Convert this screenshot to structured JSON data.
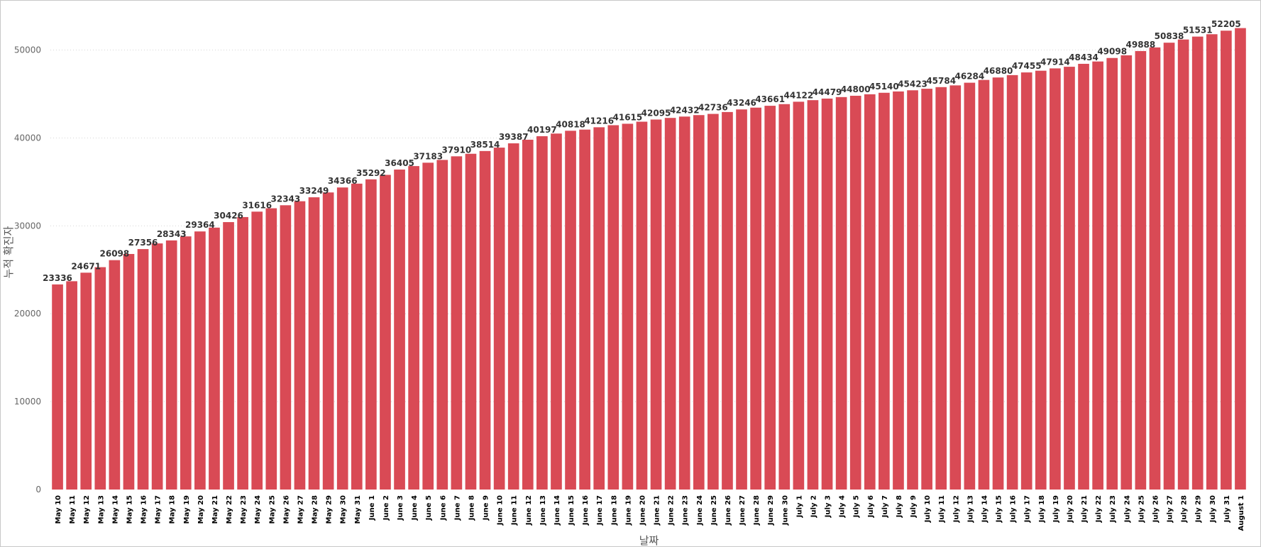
{
  "chart_data": {
    "type": "bar",
    "xlabel": "날짜",
    "ylabel": "누적 확진자",
    "ylim": [
      0,
      54000
    ],
    "yticks": [
      0,
      10000,
      20000,
      30000,
      40000,
      50000
    ],
    "grid": true,
    "bar_color": "#d94a55",
    "categories": [
      "May 10",
      "May 11",
      "May 12",
      "May 13",
      "May 14",
      "May 15",
      "May 16",
      "May 17",
      "May 18",
      "May 19",
      "May 20",
      "May 21",
      "May 22",
      "May 23",
      "May 24",
      "May 25",
      "May 26",
      "May 27",
      "May 28",
      "May 29",
      "May 30",
      "May 31",
      "June 1",
      "June 2",
      "June 3",
      "June 4",
      "June 5",
      "June 6",
      "June 7",
      "June 8",
      "June 9",
      "June 10",
      "June 11",
      "June 12",
      "June 13",
      "June 14",
      "June 15",
      "June 16",
      "June 17",
      "June 18",
      "June 19",
      "June 20",
      "June 21",
      "June 22",
      "June 23",
      "June 24",
      "June 25",
      "June 26",
      "June 27",
      "June 28",
      "June 29",
      "June 30",
      "July 1",
      "July 2",
      "July 3",
      "July 4",
      "July 5",
      "July 6",
      "July 7",
      "July 8",
      "July 9",
      "July 10",
      "July 11",
      "July 12",
      "July 13",
      "July 14",
      "July 15",
      "July 16",
      "July 17",
      "July 18",
      "July 19",
      "July 20",
      "July 21",
      "July 22",
      "July 23",
      "July 24",
      "July 25",
      "July 26",
      "July 27",
      "July 28",
      "July 29",
      "July 30",
      "July 31",
      "August 1"
    ],
    "values": [
      23336,
      23700,
      24671,
      25300,
      26098,
      26800,
      27356,
      28000,
      28343,
      28800,
      29364,
      29800,
      30426,
      31000,
      31616,
      32000,
      32343,
      32800,
      33249,
      33800,
      34366,
      34800,
      35292,
      35800,
      36405,
      36800,
      37183,
      37500,
      37910,
      38200,
      38514,
      38900,
      39387,
      39800,
      40197,
      40500,
      40818,
      40950,
      41216,
      41450,
      41615,
      41850,
      42095,
      42280,
      42432,
      42600,
      42736,
      42950,
      43246,
      43450,
      43661,
      43850,
      44122,
      44300,
      44479,
      44650,
      44800,
      44970,
      45140,
      45290,
      45423,
      45600,
      45784,
      45980,
      46284,
      46600,
      46880,
      47150,
      47455,
      47650,
      47914,
      48100,
      48434,
      48700,
      49098,
      49400,
      49888,
      50300,
      50838,
      51200,
      51531,
      51800,
      52205,
      52500
    ],
    "data_labels": [
      {
        "index": 0,
        "text": "23336"
      },
      {
        "index": 2,
        "text": "24671"
      },
      {
        "index": 4,
        "text": "26098"
      },
      {
        "index": 6,
        "text": "27356"
      },
      {
        "index": 8,
        "text": "28343"
      },
      {
        "index": 10,
        "text": "29364"
      },
      {
        "index": 12,
        "text": "30426"
      },
      {
        "index": 14,
        "text": "31616"
      },
      {
        "index": 16,
        "text": "32343"
      },
      {
        "index": 18,
        "text": "33249"
      },
      {
        "index": 20,
        "text": "34366"
      },
      {
        "index": 22,
        "text": "35292"
      },
      {
        "index": 24,
        "text": "36405"
      },
      {
        "index": 26,
        "text": "37183"
      },
      {
        "index": 28,
        "text": "37910"
      },
      {
        "index": 30,
        "text": "38514"
      },
      {
        "index": 32,
        "text": "39387"
      },
      {
        "index": 34,
        "text": "40197"
      },
      {
        "index": 36,
        "text": "40818"
      },
      {
        "index": 38,
        "text": "41216"
      },
      {
        "index": 40,
        "text": "41615"
      },
      {
        "index": 42,
        "text": "42095"
      },
      {
        "index": 44,
        "text": "42432"
      },
      {
        "index": 46,
        "text": "42736"
      },
      {
        "index": 48,
        "text": "43246"
      },
      {
        "index": 50,
        "text": "43661"
      },
      {
        "index": 52,
        "text": "44122"
      },
      {
        "index": 54,
        "text": "44479"
      },
      {
        "index": 56,
        "text": "44800"
      },
      {
        "index": 58,
        "text": "45140"
      },
      {
        "index": 60,
        "text": "45423"
      },
      {
        "index": 62,
        "text": "45784"
      },
      {
        "index": 64,
        "text": "46284"
      },
      {
        "index": 66,
        "text": "46880"
      },
      {
        "index": 68,
        "text": "47455"
      },
      {
        "index": 70,
        "text": "47914"
      },
      {
        "index": 72,
        "text": "48434"
      },
      {
        "index": 74,
        "text": "49098"
      },
      {
        "index": 76,
        "text": "49888"
      },
      {
        "index": 78,
        "text": "50838"
      },
      {
        "index": 80,
        "text": "51531"
      },
      {
        "index": 82,
        "text": "52205"
      }
    ]
  }
}
